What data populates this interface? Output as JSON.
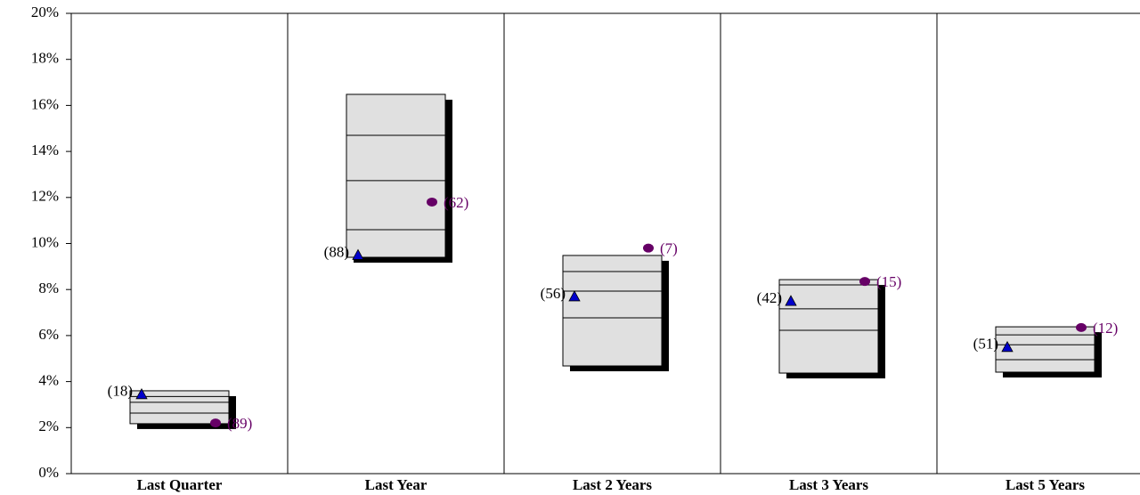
{
  "chart_data": {
    "type": "floating_box",
    "categories": [
      "Last Quarter",
      "Last Year",
      "Last 2 Years",
      "Last 3 Years",
      "Last 5 Years"
    ],
    "boxes": {
      "high": [
        3.6,
        16.48,
        9.48,
        8.43,
        6.38
      ],
      "upper": [
        3.35,
        14.7,
        8.78,
        8.2,
        6.03
      ],
      "median": [
        3.1,
        12.73,
        7.93,
        7.16,
        5.6
      ],
      "lower": [
        2.63,
        10.6,
        6.77,
        6.23,
        4.95
      ],
      "low": [
        2.17,
        9.4,
        4.68,
        4.37,
        4.41
      ],
      "color": "#e0e0e0"
    },
    "series": [
      {
        "marker": "triangle",
        "color": "#0000cc",
        "label_color": "#000000",
        "values": [
          3.45,
          9.5,
          7.7,
          7.5,
          5.5
        ],
        "labels": [
          "(18)",
          "(88)",
          "(56)",
          "(42)",
          "(51)"
        ]
      },
      {
        "marker": "circle",
        "color": "#660066",
        "label_color": "#660066",
        "values": [
          2.2,
          11.8,
          9.8,
          8.35,
          6.35
        ],
        "labels": [
          "(89)",
          "(62)",
          "(7)",
          "(15)",
          "(12)"
        ]
      }
    ],
    "ylim": [
      0,
      20
    ],
    "yticks": [
      {
        "value": 0,
        "label": "0%"
      },
      {
        "value": 2,
        "label": "2%"
      },
      {
        "value": 4,
        "label": "4%"
      },
      {
        "value": 6,
        "label": "6%"
      },
      {
        "value": 8,
        "label": "8%"
      },
      {
        "value": 10,
        "label": "10%"
      },
      {
        "value": 12,
        "label": "12%"
      },
      {
        "value": 14,
        "label": "14%"
      },
      {
        "value": 16,
        "label": "16%"
      },
      {
        "value": 18,
        "label": "18%"
      },
      {
        "value": 20,
        "label": "20%"
      }
    ]
  }
}
